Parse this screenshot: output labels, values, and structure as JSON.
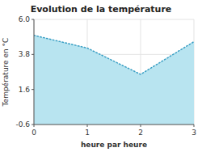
{
  "chart_data": {
    "type": "area",
    "title": "Evolution de la température",
    "x_label": "heure par heure",
    "y_label": "Température en °C",
    "x": [
      0,
      1,
      2,
      3
    ],
    "values": [
      5.0,
      4.2,
      2.55,
      4.6
    ],
    "xlim": [
      0,
      3
    ],
    "ylim": [
      -0.6,
      6.0
    ],
    "xticks": [
      0,
      1,
      2,
      3
    ],
    "yticks": [
      -0.6,
      1.6,
      3.8,
      {
        "value": 6.0,
        "label": "6.0"
      }
    ],
    "color": "#b8e4f0",
    "line_style": "dotted",
    "grid": true
  }
}
